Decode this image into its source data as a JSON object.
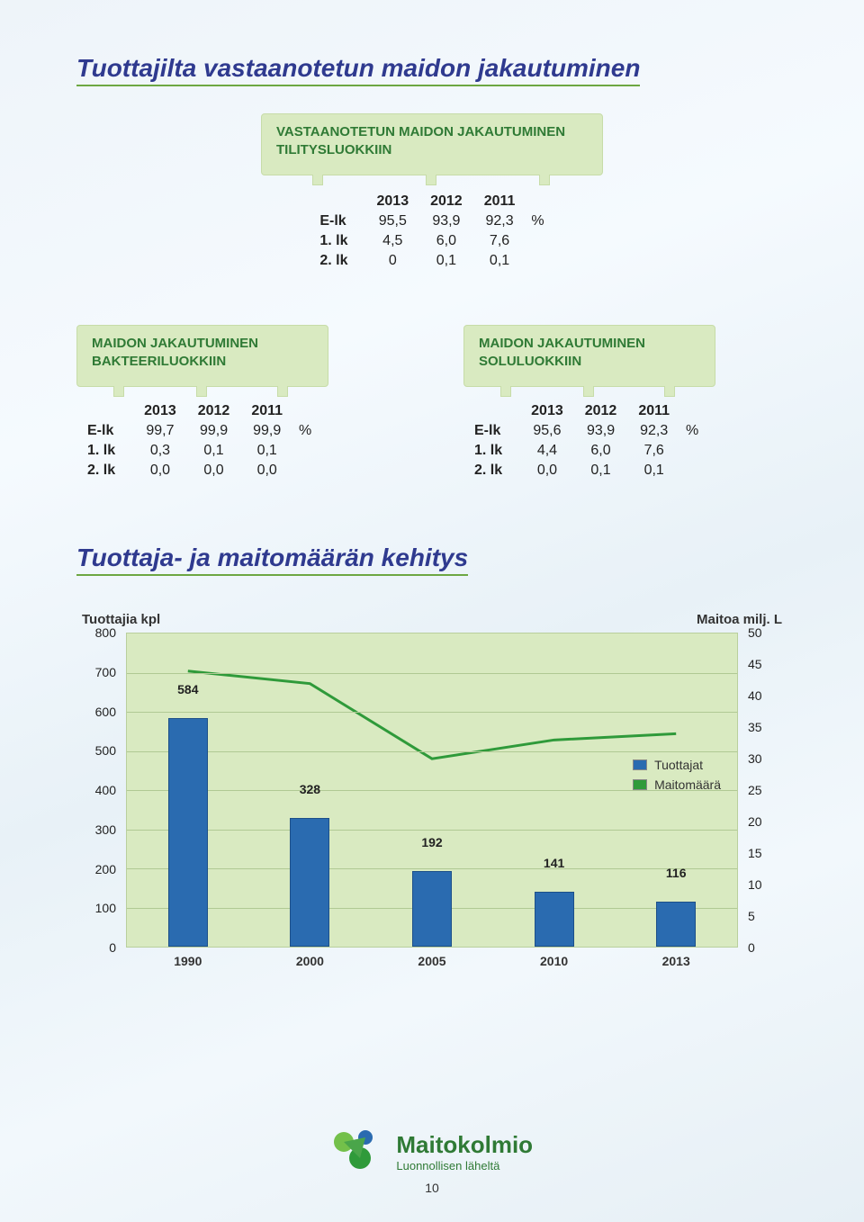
{
  "section1_title": "Tuottajilta vastaanotetun maidon jakautuminen",
  "section2_title": "Tuottaja- ja maitomäärän kehitys",
  "tab_top_title_l1": "VASTAANOTETUN MAIDON JAKAUTUMINEN",
  "tab_top_title_l2": "TILITYSLUOKKIIN",
  "table_top": {
    "years": [
      "2013",
      "2012",
      "2011"
    ],
    "rows": [
      {
        "label": "E-lk",
        "vals": [
          "95,5",
          "93,9",
          "92,3"
        ],
        "unit": "%"
      },
      {
        "label": "1. lk",
        "vals": [
          "4,5",
          "6,0",
          "7,6"
        ],
        "unit": ""
      },
      {
        "label": "2. lk",
        "vals": [
          "0",
          "0,1",
          "0,1"
        ],
        "unit": ""
      }
    ]
  },
  "tab_left_title_l1": "MAIDON JAKAUTUMINEN",
  "tab_left_title_l2": "BAKTEERILUOKKIIN",
  "table_left": {
    "years": [
      "2013",
      "2012",
      "2011"
    ],
    "rows": [
      {
        "label": "E-lk",
        "vals": [
          "99,7",
          "99,9",
          "99,9"
        ],
        "unit": "%"
      },
      {
        "label": "1. lk",
        "vals": [
          "0,3",
          "0,1",
          "0,1"
        ],
        "unit": ""
      },
      {
        "label": "2. lk",
        "vals": [
          "0,0",
          "0,0",
          "0,0"
        ],
        "unit": ""
      }
    ]
  },
  "tab_right_title_l1": "MAIDON JAKAUTUMINEN",
  "tab_right_title_l2": "SOLULUOKKIIN",
  "table_right": {
    "years": [
      "2013",
      "2012",
      "2011"
    ],
    "rows": [
      {
        "label": "E-lk",
        "vals": [
          "95,6",
          "93,9",
          "92,3"
        ],
        "unit": "%"
      },
      {
        "label": "1. lk",
        "vals": [
          "4,4",
          "6,0",
          "7,6"
        ],
        "unit": ""
      },
      {
        "label": "2. lk",
        "vals": [
          "0,0",
          "0,1",
          "0,1"
        ],
        "unit": ""
      }
    ]
  },
  "chart": {
    "left_axis_label": "Tuottajia kpl",
    "right_axis_label": "Maitoa milj. L",
    "left_min": 0,
    "left_max": 800,
    "left_step": 100,
    "right_min": 0,
    "right_max": 50,
    "right_step": 5,
    "categories": [
      "1990",
      "2000",
      "2005",
      "2010",
      "2013"
    ],
    "bars": {
      "label": "Tuottajat",
      "color": "#2a6bb0",
      "values": [
        584,
        328,
        192,
        141,
        116
      ]
    },
    "line": {
      "label": "Maitomäärä",
      "color": "#2f9a3a",
      "values": [
        44,
        42,
        30,
        33,
        34
      ]
    },
    "plot_bg": "#d9eac1",
    "grid_color": "#b0c994"
  },
  "logo_brand": "Maitokolmio",
  "logo_tagline": "Luonnollisen läheltä",
  "page_number": "10"
}
